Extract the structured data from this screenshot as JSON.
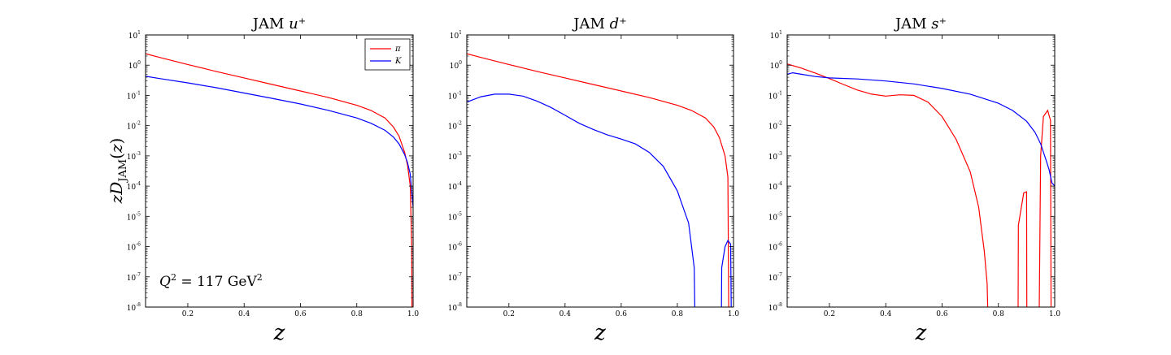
{
  "y_label": "zD_JAM(z)",
  "annotation": "Q² = 117 GeV²",
  "legend": [
    "π",
    "K"
  ],
  "colors": {
    "pi": "#ff0000",
    "K": "#0000ff"
  },
  "chart_data": [
    {
      "type": "line",
      "title": "JAM u⁺",
      "xlabel": "z",
      "ylabel": "zD_JAM(z)",
      "xlim": [
        0.05,
        1.0
      ],
      "ylim": [
        1e-08,
        10
      ],
      "yscale": "log",
      "grid": false,
      "legend": "top-right",
      "x_ticks": [
        "0.2",
        "0.4",
        "0.6",
        "0.8",
        "1.0"
      ],
      "series": [
        {
          "name": "π",
          "color": "#ff0000",
          "points": [
            [
              0.05,
              2.4
            ],
            [
              0.1,
              1.8
            ],
            [
              0.2,
              1.05
            ],
            [
              0.3,
              0.62
            ],
            [
              0.4,
              0.38
            ],
            [
              0.5,
              0.23
            ],
            [
              0.6,
              0.14
            ],
            [
              0.7,
              0.085
            ],
            [
              0.8,
              0.047
            ],
            [
              0.85,
              0.032
            ],
            [
              0.9,
              0.018
            ],
            [
              0.93,
              0.009
            ],
            [
              0.95,
              0.0045
            ],
            [
              0.97,
              0.0013
            ],
            [
              0.98,
              0.0005
            ],
            [
              0.99,
              0.0001
            ],
            [
              0.995,
              1e-06
            ],
            [
              0.996,
              1e-08
            ]
          ]
        },
        {
          "name": "K",
          "color": "#0000ff",
          "points": [
            [
              0.05,
              0.43
            ],
            [
              0.1,
              0.36
            ],
            [
              0.2,
              0.26
            ],
            [
              0.3,
              0.18
            ],
            [
              0.4,
              0.12
            ],
            [
              0.5,
              0.08
            ],
            [
              0.6,
              0.052
            ],
            [
              0.7,
              0.032
            ],
            [
              0.8,
              0.018
            ],
            [
              0.85,
              0.012
            ],
            [
              0.9,
              0.007
            ],
            [
              0.93,
              0.0042
            ],
            [
              0.95,
              0.0025
            ],
            [
              0.97,
              0.0011
            ],
            [
              0.98,
              0.0006
            ],
            [
              0.99,
              0.00025
            ],
            [
              1.0,
              2e-05
            ]
          ]
        }
      ]
    },
    {
      "type": "line",
      "title": "JAM d⁺",
      "xlabel": "z",
      "ylabel": "",
      "xlim": [
        0.05,
        1.0
      ],
      "ylim": [
        1e-08,
        10
      ],
      "yscale": "log",
      "grid": false,
      "x_ticks": [
        "0.2",
        "0.4",
        "0.6",
        "0.8",
        "1.0"
      ],
      "series": [
        {
          "name": "π",
          "color": "#ff0000",
          "points": [
            [
              0.05,
              2.4
            ],
            [
              0.1,
              1.8
            ],
            [
              0.2,
              1.05
            ],
            [
              0.3,
              0.62
            ],
            [
              0.4,
              0.38
            ],
            [
              0.5,
              0.23
            ],
            [
              0.6,
              0.14
            ],
            [
              0.7,
              0.085
            ],
            [
              0.8,
              0.047
            ],
            [
              0.85,
              0.032
            ],
            [
              0.9,
              0.018
            ],
            [
              0.93,
              0.009
            ],
            [
              0.95,
              0.004
            ],
            [
              0.97,
              0.001
            ],
            [
              0.98,
              0.0002
            ],
            [
              0.983,
              1e-08
            ]
          ]
        },
        {
          "name": "K",
          "color": "#0000ff",
          "segments": [
            [
              [
                0.05,
                0.06
              ],
              [
                0.1,
                0.09
              ],
              [
                0.15,
                0.11
              ],
              [
                0.2,
                0.11
              ],
              [
                0.25,
                0.095
              ],
              [
                0.3,
                0.065
              ],
              [
                0.35,
                0.04
              ],
              [
                0.4,
                0.022
              ],
              [
                0.45,
                0.012
              ],
              [
                0.5,
                0.0075
              ],
              [
                0.55,
                0.005
              ],
              [
                0.6,
                0.0036
              ],
              [
                0.65,
                0.0025
              ],
              [
                0.7,
                0.0013
              ],
              [
                0.75,
                0.00045
              ],
              [
                0.8,
                7e-05
              ],
              [
                0.84,
                6e-06
              ],
              [
                0.86,
                2e-07
              ],
              [
                0.862,
                1e-08
              ]
            ],
            [
              [
                0.957,
                1e-08
              ],
              [
                0.958,
                2e-07
              ],
              [
                0.97,
                1e-06
              ],
              [
                0.98,
                1.6e-06
              ],
              [
                0.99,
                1.2e-06
              ],
              [
                0.992,
                1e-08
              ]
            ]
          ]
        }
      ]
    },
    {
      "type": "line",
      "title": "JAM s⁺",
      "xlabel": "z",
      "ylabel": "",
      "xlim": [
        0.05,
        1.0
      ],
      "ylim": [
        1e-08,
        10
      ],
      "yscale": "log",
      "grid": false,
      "x_ticks": [
        "0.2",
        "0.4",
        "0.6",
        "0.8",
        "1.0"
      ],
      "series": [
        {
          "name": "π",
          "color": "#ff0000",
          "segments": [
            [
              [
                0.05,
                1.1
              ],
              [
                0.1,
                0.8
              ],
              [
                0.15,
                0.55
              ],
              [
                0.2,
                0.36
              ],
              [
                0.25,
                0.23
              ],
              [
                0.3,
                0.15
              ],
              [
                0.35,
                0.11
              ],
              [
                0.4,
                0.095
              ],
              [
                0.45,
                0.105
              ],
              [
                0.5,
                0.1
              ],
              [
                0.55,
                0.06
              ],
              [
                0.6,
                0.02
              ],
              [
                0.65,
                0.0035
              ],
              [
                0.7,
                0.0003
              ],
              [
                0.73,
                2e-05
              ],
              [
                0.75,
                7e-07
              ],
              [
                0.76,
                6e-08
              ],
              [
                0.762,
                1e-08
              ]
            ],
            [
              [
                0.87,
                1e-08
              ],
              [
                0.871,
                5e-06
              ],
              [
                0.89,
                6e-05
              ],
              [
                0.9,
                6.5e-05
              ],
              [
                0.901,
                1e-08
              ]
            ],
            [
              [
                0.945,
                1e-08
              ],
              [
                0.95,
                0.001
              ],
              [
                0.96,
                0.02
              ],
              [
                0.975,
                0.032
              ],
              [
                0.985,
                0.015
              ],
              [
                0.987,
                1e-08
              ]
            ]
          ]
        },
        {
          "name": "K",
          "color": "#0000ff",
          "points": [
            [
              0.05,
              0.5
            ],
            [
              0.07,
              0.56
            ],
            [
              0.1,
              0.5
            ],
            [
              0.15,
              0.42
            ],
            [
              0.2,
              0.38
            ],
            [
              0.3,
              0.35
            ],
            [
              0.4,
              0.3
            ],
            [
              0.5,
              0.24
            ],
            [
              0.6,
              0.17
            ],
            [
              0.7,
              0.11
            ],
            [
              0.8,
              0.055
            ],
            [
              0.85,
              0.032
            ],
            [
              0.9,
              0.014
            ],
            [
              0.93,
              0.006
            ],
            [
              0.95,
              0.0025
            ],
            [
              0.97,
              0.0007
            ],
            [
              0.98,
              0.00035
            ],
            [
              0.99,
              0.00013
            ],
            [
              1.0,
              0.0001
            ]
          ]
        }
      ]
    }
  ]
}
